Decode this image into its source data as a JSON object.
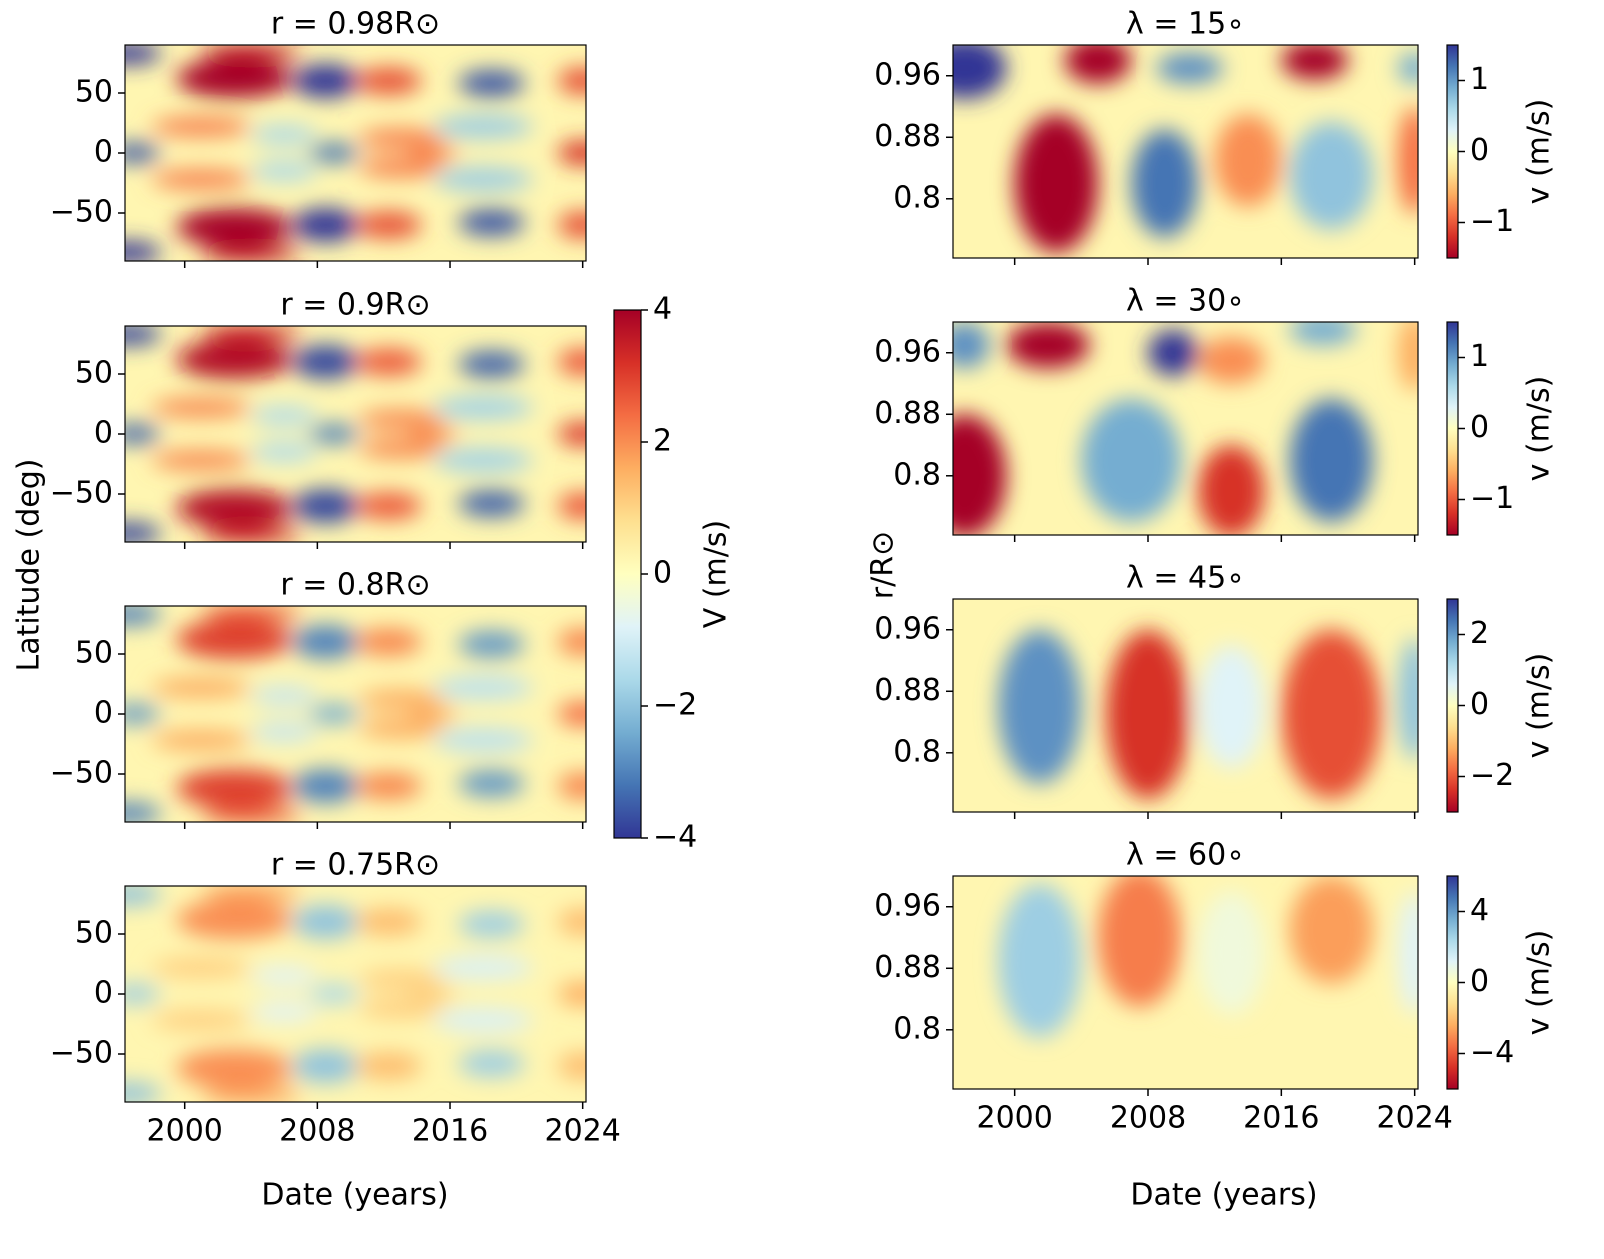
{
  "figure": {
    "xlabel_left": "Date (years)",
    "xlabel_right": "Date (years)",
    "ylabel_left": "Latitude (deg)",
    "ylabel_right": "r/R⊙"
  },
  "shared_colorbar": {
    "label": "V (m/s)",
    "clim": [
      -4,
      4
    ],
    "ticks": [
      4,
      2,
      0,
      {
        "value": -2,
        "label": "−2"
      },
      {
        "value": -4,
        "label": "−4"
      }
    ],
    "colormap": [
      "#313695",
      "#4575b4",
      "#74add1",
      "#abd9e9",
      "#e0f3f8",
      "#ffffbf",
      "#fee090",
      "#fdae61",
      "#f46d43",
      "#d73027",
      "#a50026"
    ]
  },
  "chart_data": [
    {
      "type": "heatmap",
      "title": "r =  0.98R⊙",
      "xlim": [
        1996.4,
        2024.2
      ],
      "xticks": [
        2000,
        2008,
        2016,
        2024
      ],
      "ylim": [
        -90,
        90
      ],
      "yticks": [
        50,
        0,
        {
          "value": -50,
          "label": "−50"
        }
      ],
      "colormap": [
        "#313695",
        "#4575b4",
        "#74add1",
        "#abd9e9",
        "#e0f3f8",
        "#ffffbf",
        "#fee090",
        "#fdae61",
        "#f46d43",
        "#d73027",
        "#a50026"
      ]
    },
    {
      "type": "heatmap",
      "title": "r =  0.9R⊙",
      "xlim": [
        1996.4,
        2024.2
      ],
      "xticks": [
        2000,
        2008,
        2016,
        2024
      ],
      "ylim": [
        -90,
        90
      ],
      "yticks": [
        50,
        0,
        {
          "value": -50,
          "label": "−50"
        }
      ],
      "colormap": [
        "#313695",
        "#4575b4",
        "#74add1",
        "#abd9e9",
        "#e0f3f8",
        "#ffffbf",
        "#fee090",
        "#fdae61",
        "#f46d43",
        "#d73027",
        "#a50026"
      ]
    },
    {
      "type": "heatmap",
      "title": "r =  0.8R⊙",
      "xlim": [
        1996.4,
        2024.2
      ],
      "xticks": [
        2000,
        2008,
        2016,
        2024
      ],
      "ylim": [
        -90,
        90
      ],
      "yticks": [
        50,
        0,
        {
          "value": -50,
          "label": "−50"
        }
      ],
      "colormap": [
        "#313695",
        "#4575b4",
        "#74add1",
        "#abd9e9",
        "#e0f3f8",
        "#ffffbf",
        "#fee090",
        "#fdae61",
        "#f46d43",
        "#d73027",
        "#a50026"
      ]
    },
    {
      "type": "heatmap",
      "title": "r =  0.75R⊙",
      "xlim": [
        1996.4,
        2024.2
      ],
      "xticks": [
        2000,
        2008,
        2016,
        2024
      ],
      "ylim": [
        -90,
        90
      ],
      "yticks": [
        50,
        0,
        {
          "value": -50,
          "label": "−50"
        }
      ],
      "colormap": [
        "#313695",
        "#4575b4",
        "#74add1",
        "#abd9e9",
        "#e0f3f8",
        "#ffffbf",
        "#fee090",
        "#fdae61",
        "#f46d43",
        "#d73027",
        "#a50026"
      ]
    },
    {
      "type": "heatmap",
      "title": "λ =  15∘",
      "xlim": [
        1996.3,
        2024.2
      ],
      "xticks": [
        2000,
        2008,
        2016,
        2024
      ],
      "ylim": [
        0.723,
        1.0
      ],
      "yticks": [
        0.96,
        0.88,
        0.8
      ],
      "colormap": [
        "#a50026",
        "#d73027",
        "#f46d43",
        "#fdae61",
        "#fee090",
        "#ffffbf",
        "#e0f3f8",
        "#abd9e9",
        "#74add1",
        "#4575b4",
        "#313695"
      ],
      "colorbar": {
        "label": "v (m/s)",
        "clim": [
          -1.5,
          1.5
        ],
        "ticks": [
          1,
          0,
          {
            "value": -1,
            "label": "−1"
          }
        ]
      }
    },
    {
      "type": "heatmap",
      "title": "λ =  30∘",
      "xlim": [
        1996.3,
        2024.2
      ],
      "xticks": [
        2000,
        2008,
        2016,
        2024
      ],
      "ylim": [
        0.723,
        1.0
      ],
      "yticks": [
        0.96,
        0.88,
        0.8
      ],
      "colormap": [
        "#a50026",
        "#d73027",
        "#f46d43",
        "#fdae61",
        "#fee090",
        "#ffffbf",
        "#e0f3f8",
        "#abd9e9",
        "#74add1",
        "#4575b4",
        "#313695"
      ],
      "colorbar": {
        "label": "v (m/s)",
        "clim": [
          -1.5,
          1.5
        ],
        "ticks": [
          1,
          0,
          {
            "value": -1,
            "label": "−1"
          }
        ]
      }
    },
    {
      "type": "heatmap",
      "title": "λ =  45∘",
      "xlim": [
        1996.3,
        2024.2
      ],
      "xticks": [
        2000,
        2008,
        2016,
        2024
      ],
      "ylim": [
        0.723,
        1.0
      ],
      "yticks": [
        0.96,
        0.88,
        0.8
      ],
      "colormap": [
        "#a50026",
        "#d73027",
        "#f46d43",
        "#fdae61",
        "#fee090",
        "#ffffbf",
        "#e0f3f8",
        "#abd9e9",
        "#74add1",
        "#4575b4",
        "#313695"
      ],
      "colorbar": {
        "label": "v (m/s)",
        "clim": [
          -3,
          3
        ],
        "ticks": [
          2,
          0,
          {
            "value": -2,
            "label": "−2"
          }
        ]
      }
    },
    {
      "type": "heatmap",
      "title": "λ =  60∘",
      "xlim": [
        1996.3,
        2024.2
      ],
      "xticks": [
        2000,
        2008,
        2016,
        2024
      ],
      "ylim": [
        0.723,
        1.0
      ],
      "yticks": [
        0.96,
        0.88,
        0.8
      ],
      "colormap": [
        "#a50026",
        "#d73027",
        "#f46d43",
        "#fdae61",
        "#fee090",
        "#ffffbf",
        "#e0f3f8",
        "#abd9e9",
        "#74add1",
        "#4575b4",
        "#313695"
      ],
      "colorbar": {
        "label": "v (m/s)",
        "clim": [
          -6,
          6
        ],
        "ticks": [
          4,
          0,
          {
            "value": -4,
            "label": "−4"
          }
        ]
      }
    }
  ]
}
